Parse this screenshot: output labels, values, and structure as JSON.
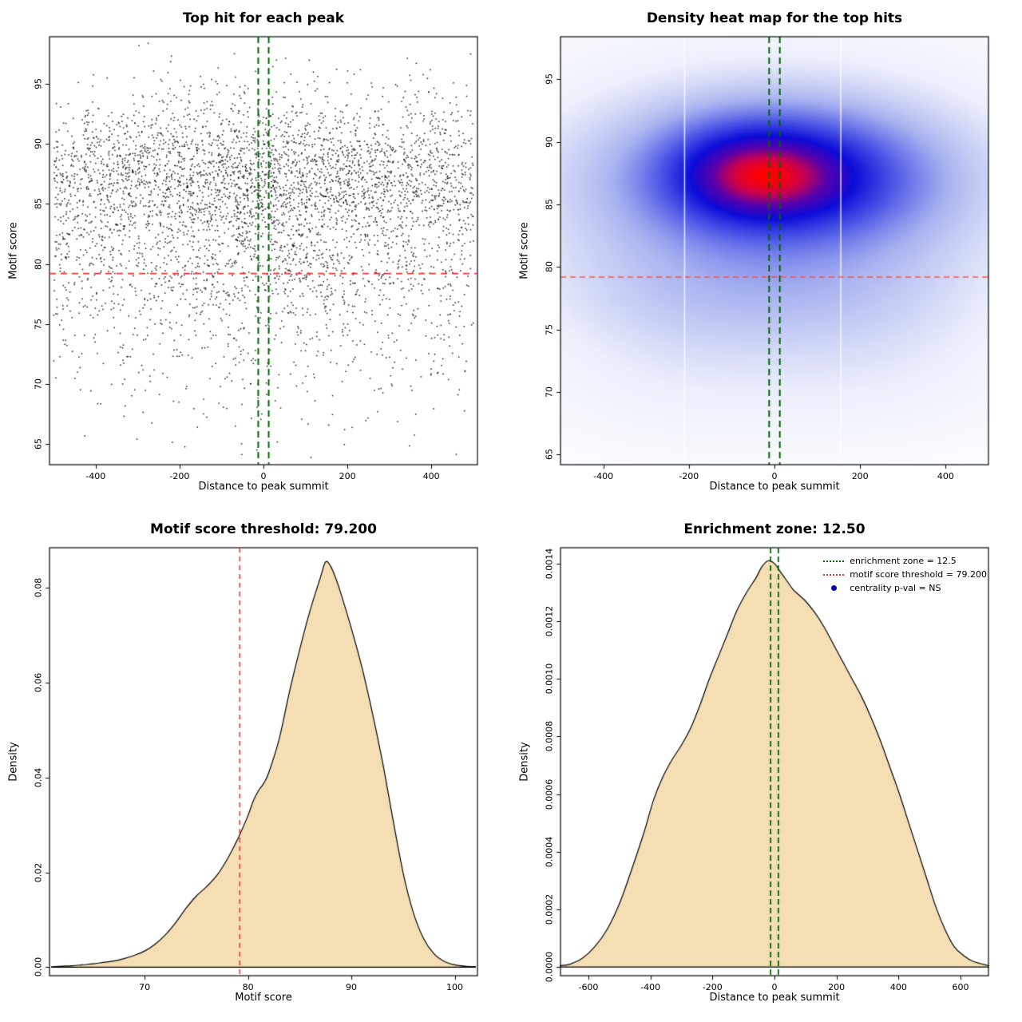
{
  "colors": {
    "threshold_red": "#ee3333",
    "zone_green": "#006400",
    "density_fill": "#f5deb3",
    "scatter_point": "#000000",
    "legend_point_blue": "#0000bb"
  },
  "chart_data": [
    {
      "type": "scatter",
      "title": "Top hit for each peak",
      "xlabel": "Distance to peak summit",
      "ylabel": "Motif score",
      "xlim": [
        -510,
        510
      ],
      "ylim": [
        63.3,
        98.9
      ],
      "xtick_values": [
        -400,
        -200,
        0,
        200,
        400
      ],
      "xtick_labels": [
        "-400",
        "-200",
        "0",
        "200",
        "400"
      ],
      "ytick_values": [
        65,
        70,
        75,
        80,
        85,
        90,
        95
      ],
      "ytick_labels": [
        "65",
        "70",
        "75",
        "80",
        "85",
        "90",
        "95"
      ],
      "threshold_line_y": 79.2,
      "zone_lines_x": [
        -12.5,
        12.5
      ],
      "points_summary": {
        "n": 4600,
        "seed": 11,
        "x_uniform_frac": 0.7,
        "x_range": [
          -500,
          500
        ],
        "x_center_sd": 215,
        "y_clusters": [
          {
            "w": 0.72,
            "mean": 87.3,
            "sd": 3.5
          },
          {
            "w": 0.2,
            "mean": 79.6,
            "sd": 2.9
          },
          {
            "w": 0.08,
            "mean": 72.8,
            "sd": 3.4
          }
        ],
        "y_clip": [
          63.6,
          98.6
        ]
      }
    },
    {
      "type": "heatmap",
      "title": "Density heat map for the top hits",
      "xlabel": "Distance to peak summit",
      "ylabel": "Motif score",
      "xlim": [
        -500,
        500
      ],
      "ylim": [
        64.2,
        98.4
      ],
      "xtick_values": [
        -400,
        -200,
        0,
        200,
        400
      ],
      "xtick_labels": [
        "-400",
        "-200",
        "0",
        "200",
        "400"
      ],
      "ytick_values": [
        65,
        70,
        75,
        80,
        85,
        90,
        95
      ],
      "ytick_labels": [
        "65",
        "70",
        "75",
        "80",
        "85",
        "90",
        "95"
      ],
      "threshold_line_y": 79.2,
      "zone_lines_x": [
        -12.5,
        12.5
      ],
      "white_lines_x": [
        -210,
        155
      ],
      "kernels": [
        {
          "x": -60,
          "y": 87.5,
          "sx": 130,
          "sy": 2.6,
          "w": 1.0
        },
        {
          "x": 70,
          "y": 87.2,
          "sx": 170,
          "sy": 3.0,
          "w": 0.8
        },
        {
          "x": 0,
          "y": 87.0,
          "sx": 300,
          "sy": 4.5,
          "w": 0.6
        },
        {
          "x": 0,
          "y": 85.0,
          "sx": 380,
          "sy": 7.5,
          "w": 0.35
        },
        {
          "x": -50,
          "y": 77.8,
          "sx": 320,
          "sy": 3.2,
          "w": 0.22
        },
        {
          "x": 260,
          "y": 73.0,
          "sx": 200,
          "sy": 4.0,
          "w": 0.08
        },
        {
          "x": -260,
          "y": 72.0,
          "sx": 210,
          "sy": 4.0,
          "w": 0.08
        },
        {
          "x": 60,
          "y": 70.0,
          "sx": 300,
          "sy": 3.0,
          "w": 0.05
        }
      ],
      "colorscale": [
        [
          0,
          "#ffffff"
        ],
        [
          0.18,
          "#eceffb"
        ],
        [
          0.38,
          "#aab4f0"
        ],
        [
          0.58,
          "#4a55e6"
        ],
        [
          0.74,
          "#0b0bd8"
        ],
        [
          0.86,
          "#5a00aa"
        ],
        [
          0.94,
          "#c80050"
        ],
        [
          1,
          "#ff0000"
        ]
      ]
    },
    {
      "type": "area",
      "title": "Motif score threshold: 79.200",
      "xlabel": "Motif score",
      "ylabel": "Density",
      "xlim": [
        60.8,
        102.2
      ],
      "ylim": [
        -0.0018,
        0.0885
      ],
      "xtick_values": [
        70,
        80,
        90,
        100
      ],
      "xtick_labels": [
        "70",
        "80",
        "90",
        "100"
      ],
      "ytick_values": [
        0,
        0.02,
        0.04,
        0.06,
        0.08
      ],
      "ytick_labels": [
        "0.00",
        "0.02",
        "0.04",
        "0.06",
        "0.08"
      ],
      "threshold_line_x": 79.2,
      "fill": "#f5deb3",
      "curve": [
        [
          61,
          0.0001
        ],
        [
          62,
          0.0002
        ],
        [
          63,
          0.0003
        ],
        [
          64,
          0.0005
        ],
        [
          65,
          0.0007
        ],
        [
          66,
          0.001
        ],
        [
          67,
          0.0013
        ],
        [
          68,
          0.0018
        ],
        [
          69,
          0.0025
        ],
        [
          70,
          0.0034
        ],
        [
          71,
          0.0048
        ],
        [
          72,
          0.0068
        ],
        [
          73,
          0.0094
        ],
        [
          74,
          0.0124
        ],
        [
          75,
          0.015
        ],
        [
          76,
          0.017
        ],
        [
          77,
          0.0194
        ],
        [
          78,
          0.0228
        ],
        [
          79,
          0.027
        ],
        [
          80,
          0.032
        ],
        [
          80.5,
          0.035
        ],
        [
          81,
          0.0372
        ],
        [
          81.5,
          0.0387
        ],
        [
          82,
          0.041
        ],
        [
          83,
          0.048
        ],
        [
          84,
          0.058
        ],
        [
          85,
          0.067
        ],
        [
          86,
          0.0752
        ],
        [
          87,
          0.0822
        ],
        [
          87.5,
          0.0855
        ],
        [
          88,
          0.0846
        ],
        [
          88.5,
          0.082
        ],
        [
          89,
          0.0788
        ],
        [
          90,
          0.0715
        ],
        [
          91,
          0.0635
        ],
        [
          92,
          0.054
        ],
        [
          93,
          0.0435
        ],
        [
          94,
          0.0315
        ],
        [
          95,
          0.02
        ],
        [
          96,
          0.0115
        ],
        [
          97,
          0.006
        ],
        [
          98,
          0.0028
        ],
        [
          99,
          0.0012
        ],
        [
          100,
          0.0005
        ],
        [
          101,
          0.0002
        ],
        [
          102,
          0.0001
        ]
      ]
    },
    {
      "type": "area",
      "title": "Enrichment zone: 12.50",
      "xlabel": "Distance to peak summit",
      "ylabel": "Density",
      "xlim": [
        -690,
        690
      ],
      "ylim": [
        -3e-05,
        0.001455
      ],
      "xtick_values": [
        -600,
        -400,
        -200,
        0,
        200,
        400,
        600
      ],
      "xtick_labels": [
        "-600",
        "-400",
        "-200",
        "0",
        "200",
        "400",
        "600"
      ],
      "ytick_values": [
        0,
        0.0002,
        0.0004,
        0.0006,
        0.0008,
        0.001,
        0.0012,
        0.0014
      ],
      "ytick_labels": [
        "0.0000",
        "0.0002",
        "0.0004",
        "0.0006",
        "0.0008",
        "0.0010",
        "0.0012",
        "0.0014"
      ],
      "zone_lines_x": [
        -12.5,
        12.5
      ],
      "fill": "#f5deb3",
      "curve": [
        [
          -690,
          5e-06
        ],
        [
          -660,
          1e-05
        ],
        [
          -620,
          3e-05
        ],
        [
          -580,
          7e-05
        ],
        [
          -540,
          0.00013
        ],
        [
          -500,
          0.00022
        ],
        [
          -460,
          0.00034
        ],
        [
          -420,
          0.00047
        ],
        [
          -390,
          0.00058
        ],
        [
          -360,
          0.00066
        ],
        [
          -330,
          0.00072
        ],
        [
          -300,
          0.00077
        ],
        [
          -270,
          0.00083
        ],
        [
          -240,
          0.00091
        ],
        [
          -210,
          0.001
        ],
        [
          -180,
          0.00108
        ],
        [
          -150,
          0.00116
        ],
        [
          -120,
          0.00124
        ],
        [
          -90,
          0.0013
        ],
        [
          -60,
          0.00135
        ],
        [
          -40,
          0.00139
        ],
        [
          -20,
          0.00141
        ],
        [
          0,
          0.0014
        ],
        [
          20,
          0.00137
        ],
        [
          40,
          0.00134
        ],
        [
          60,
          0.00131
        ],
        [
          80,
          0.00129
        ],
        [
          100,
          0.00127
        ],
        [
          130,
          0.00123
        ],
        [
          160,
          0.00118
        ],
        [
          190,
          0.00112
        ],
        [
          220,
          0.00106
        ],
        [
          250,
          0.001
        ],
        [
          280,
          0.00094
        ],
        [
          310,
          0.00087
        ],
        [
          340,
          0.00079
        ],
        [
          370,
          0.0007
        ],
        [
          400,
          0.00061
        ],
        [
          430,
          0.00051
        ],
        [
          460,
          0.00041
        ],
        [
          490,
          0.00031
        ],
        [
          520,
          0.00021
        ],
        [
          550,
          0.00013
        ],
        [
          580,
          7e-05
        ],
        [
          610,
          4e-05
        ],
        [
          640,
          2e-05
        ],
        [
          690,
          5e-06
        ]
      ],
      "legend": [
        {
          "label": "enrichment zone = 12.5",
          "swatch": "green-dotted"
        },
        {
          "label": "motif score threshold = 79.200",
          "swatch": "red-dotted"
        },
        {
          "label": "centrality p-val = NS",
          "swatch": "blue-point"
        }
      ]
    }
  ]
}
